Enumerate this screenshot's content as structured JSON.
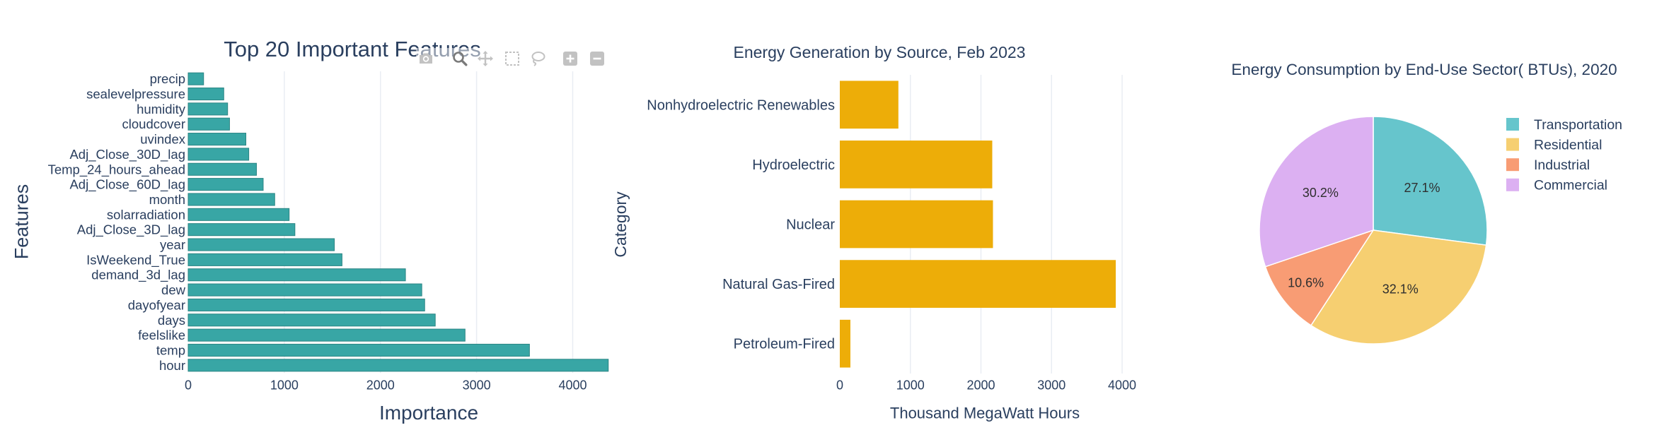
{
  "theme": {
    "text_color": "#2a3f5f",
    "grid_color": "#e9edf3"
  },
  "modebar": {
    "icons": [
      "camera-icon",
      "zoom-icon",
      "pan-icon",
      "box-select-icon",
      "lasso-select-icon",
      "zoom-in-icon",
      "zoom-out-icon"
    ],
    "active": "zoom-icon",
    "icon_color": "#c2c2c2",
    "active_icon_color": "#7a7a7a"
  },
  "chart_data": [
    {
      "type": "bar",
      "orientation": "horizontal",
      "title": "Top 20 Important Features",
      "xlabel": "Importance",
      "ylabel": "Features",
      "categories": [
        "precip",
        "sealevelpressure",
        "humidity",
        "cloudcover",
        "uvindex",
        "Adj_Close_30D_lag",
        "Temp_24_hours_ahead",
        "Adj_Close_60D_lag",
        "month",
        "solarradiation",
        "Adj_Close_3D_lag",
        "year",
        "IsWeekend_True",
        "demand_3d_lag",
        "dew",
        "dayofyear",
        "days",
        "feelslike",
        "temp",
        "hour"
      ],
      "values": [
        160,
        370,
        410,
        430,
        600,
        630,
        710,
        780,
        900,
        1050,
        1110,
        1520,
        1600,
        2260,
        2430,
        2460,
        2570,
        2880,
        3550,
        4370
      ],
      "xticks": [
        0,
        1000,
        2000,
        3000,
        4000
      ],
      "xlim": [
        0,
        4600
      ],
      "grid": true,
      "color": "#38a6a5"
    },
    {
      "type": "bar",
      "orientation": "horizontal",
      "title": "Energy Generation by Source, Feb 2023",
      "xlabel": "Thousand MegaWatt Hours",
      "ylabel": "Category",
      "categories": [
        "Nonhydroelectric Renewables",
        "Hydroelectric",
        "Nuclear",
        "Natural Gas-Fired",
        "Petroleum-Fired"
      ],
      "values": [
        830,
        2160,
        2170,
        3910,
        150
      ],
      "xticks": [
        0,
        1000,
        2000,
        3000,
        4000
      ],
      "xlim": [
        0,
        4100
      ],
      "grid": true,
      "color": "#edad08"
    },
    {
      "type": "pie",
      "title": "Energy Consumption by End-Use Sector( BTUs), 2020",
      "labels": [
        "Transportation",
        "Residential",
        "Industrial",
        "Commercial"
      ],
      "values": [
        27.1,
        32.1,
        10.6,
        30.2
      ],
      "slice_labels": [
        "27.1%",
        "32.1%",
        "10.6%",
        "30.2%"
      ],
      "colors": [
        "#66c5cc",
        "#f6cf71",
        "#f89c74",
        "#dcb0f2"
      ],
      "direction": "clockwise",
      "legend": "right"
    }
  ]
}
